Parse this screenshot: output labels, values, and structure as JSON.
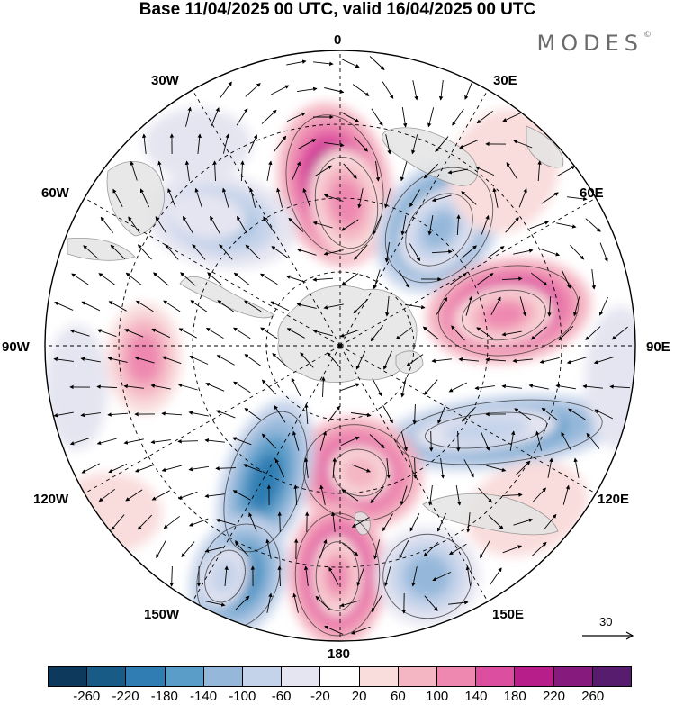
{
  "title": "Base 11/04/2025 00 UTC, valid 16/04/2025 00 UTC",
  "brand": {
    "name": "MODES",
    "mark": "©"
  },
  "longitude_labels": {
    "top": "0",
    "top_right": "30E",
    "right_upper": "60E",
    "right": "90E",
    "right_lower": "120E",
    "bottom_right": "150E",
    "bottom": "180",
    "bottom_left": "150W",
    "left_lower": "120W",
    "left": "90W",
    "left_upper": "60W",
    "top_left": "30W"
  },
  "vector_key": {
    "label": "30"
  },
  "colorbar": {
    "colors": [
      "#0d3a5c",
      "#195b87",
      "#2f7db2",
      "#5b9dc9",
      "#95b8da",
      "#c5d3ea",
      "#e5e5f1",
      "#ffffff",
      "#f9dcdc",
      "#f4b6c3",
      "#ee88b0",
      "#dc4fa0",
      "#b71e8a",
      "#861a7d",
      "#571c6e"
    ],
    "tick_labels": [
      "-260",
      "-220",
      "-180",
      "-140",
      "-100",
      "-60",
      "-20",
      "20",
      "60",
      "100",
      "140",
      "180",
      "220",
      "260"
    ]
  },
  "colors": {
    "land": "#e4e4e4",
    "coast": "#8a8a8a",
    "grid": "#000000",
    "vector": "#000000"
  }
}
